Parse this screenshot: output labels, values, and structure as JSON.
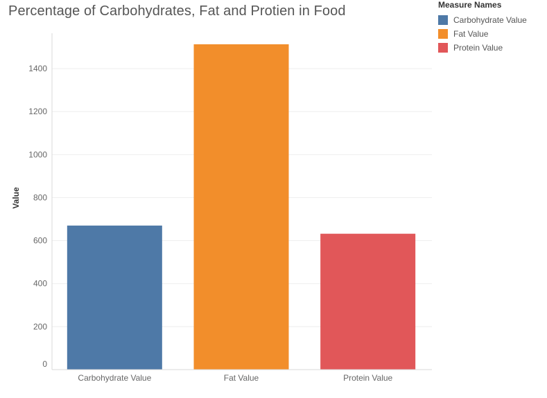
{
  "chart_data": {
    "type": "bar",
    "title": "Percentage of Carbohydrates, Fat and Protien in Food",
    "xlabel": "",
    "ylabel": "Value",
    "categories": [
      "Carbohydrate Value",
      "Fat Value",
      "Protein Value"
    ],
    "values": [
      670,
      1513,
      632
    ],
    "colors": [
      "#4e79a7",
      "#f28e2b",
      "#e15759"
    ],
    "ylim": [
      0,
      1513
    ],
    "yticks": [
      0,
      200,
      400,
      600,
      800,
      1000,
      1200,
      1400
    ],
    "grid": true,
    "legend": {
      "title": "Measure Names",
      "placement": "top-right",
      "items": [
        {
          "label": "Carbohydrate Value",
          "color": "#4e79a7"
        },
        {
          "label": "Fat Value",
          "color": "#f28e2b"
        },
        {
          "label": "Protein Value",
          "color": "#e15759"
        }
      ]
    }
  }
}
